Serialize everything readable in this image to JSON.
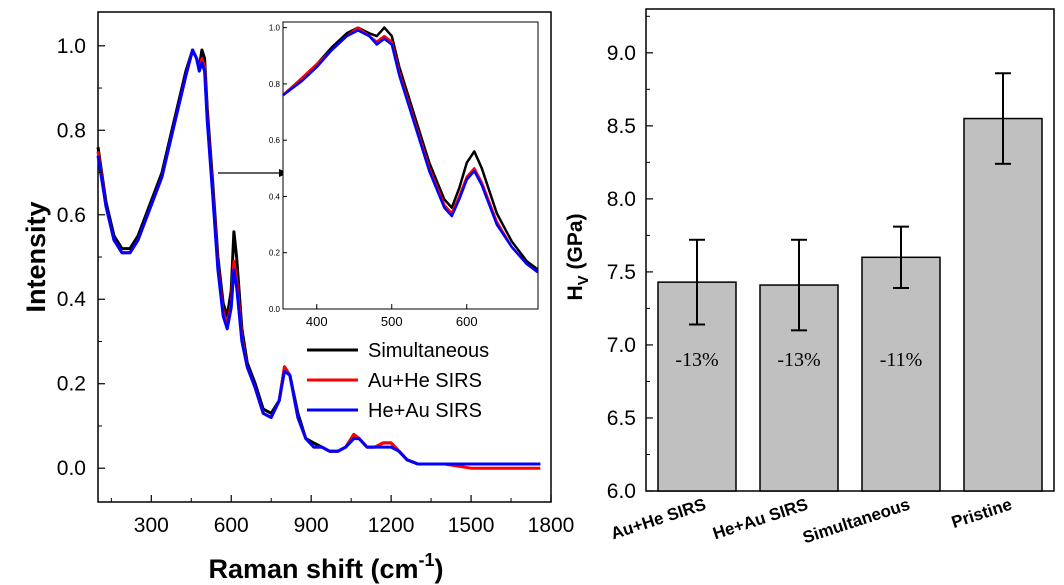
{
  "chart_data": [
    {
      "type": "line",
      "title": "",
      "xlabel": "Raman shift (cm",
      "xlabel_sup": "-1",
      "xlabel_end": ")",
      "ylabel": "Intensity",
      "xlim": [
        100,
        1800
      ],
      "ylim": [
        -0.08,
        1.08
      ],
      "x_ticks": [
        "300",
        "600",
        "900",
        "1200",
        "1500",
        "1800"
      ],
      "y_ticks": [
        "0.0",
        "0.2",
        "0.4",
        "0.6",
        "0.8",
        "1.0"
      ],
      "legend_position": "lower-right",
      "series": [
        {
          "name": "Simultaneous",
          "color": "#000000",
          "x": [
            100,
            130,
            160,
            190,
            220,
            250,
            280,
            310,
            340,
            370,
            400,
            430,
            455,
            470,
            480,
            490,
            500,
            510,
            530,
            550,
            570,
            585,
            600,
            610,
            620,
            640,
            660,
            690,
            720,
            750,
            780,
            800,
            820,
            850,
            880,
            910,
            940,
            970,
            1000,
            1030,
            1060,
            1080,
            1110,
            1140,
            1170,
            1200,
            1230,
            1260,
            1300,
            1400,
            1500,
            1600,
            1700,
            1760
          ],
          "y": [
            0.76,
            0.63,
            0.55,
            0.52,
            0.52,
            0.55,
            0.6,
            0.65,
            0.7,
            0.78,
            0.86,
            0.94,
            0.99,
            0.97,
            0.95,
            0.99,
            0.97,
            0.85,
            0.68,
            0.5,
            0.39,
            0.36,
            0.42,
            0.56,
            0.5,
            0.33,
            0.25,
            0.2,
            0.14,
            0.13,
            0.16,
            0.24,
            0.22,
            0.13,
            0.07,
            0.06,
            0.05,
            0.04,
            0.04,
            0.05,
            0.08,
            0.07,
            0.05,
            0.05,
            0.06,
            0.06,
            0.04,
            0.02,
            0.01,
            0.01,
            0.01,
            0.01,
            0.01,
            0.01
          ]
        },
        {
          "name": "Au+He SIRS",
          "color": "#ff0000",
          "x": [
            100,
            130,
            160,
            190,
            220,
            250,
            280,
            310,
            340,
            370,
            400,
            430,
            455,
            470,
            480,
            490,
            500,
            510,
            530,
            550,
            570,
            585,
            600,
            610,
            620,
            640,
            660,
            690,
            720,
            750,
            780,
            800,
            820,
            850,
            880,
            910,
            940,
            970,
            1000,
            1030,
            1060,
            1080,
            1110,
            1140,
            1170,
            1200,
            1230,
            1260,
            1300,
            1400,
            1500,
            1600,
            1700,
            1760
          ],
          "y": [
            0.75,
            0.62,
            0.54,
            0.51,
            0.51,
            0.54,
            0.59,
            0.64,
            0.69,
            0.77,
            0.85,
            0.93,
            0.99,
            0.97,
            0.94,
            0.97,
            0.95,
            0.83,
            0.66,
            0.48,
            0.37,
            0.34,
            0.39,
            0.49,
            0.45,
            0.31,
            0.24,
            0.19,
            0.13,
            0.12,
            0.16,
            0.24,
            0.22,
            0.12,
            0.07,
            0.05,
            0.05,
            0.04,
            0.04,
            0.05,
            0.08,
            0.07,
            0.05,
            0.05,
            0.06,
            0.06,
            0.04,
            0.02,
            0.01,
            0.01,
            0.0,
            0.0,
            0.0,
            0.0
          ]
        },
        {
          "name": "He+Au SIRS",
          "color": "#0000ff",
          "x": [
            100,
            130,
            160,
            190,
            220,
            250,
            280,
            310,
            340,
            370,
            400,
            430,
            455,
            470,
            480,
            490,
            500,
            510,
            530,
            550,
            570,
            585,
            600,
            610,
            620,
            640,
            660,
            690,
            720,
            750,
            780,
            800,
            820,
            850,
            880,
            910,
            940,
            970,
            1000,
            1030,
            1060,
            1080,
            1110,
            1140,
            1170,
            1200,
            1230,
            1260,
            1300,
            1400,
            1500,
            1600,
            1700,
            1760
          ],
          "y": [
            0.74,
            0.62,
            0.54,
            0.51,
            0.51,
            0.54,
            0.59,
            0.64,
            0.69,
            0.77,
            0.85,
            0.93,
            0.99,
            0.97,
            0.94,
            0.96,
            0.94,
            0.82,
            0.65,
            0.47,
            0.36,
            0.33,
            0.38,
            0.47,
            0.43,
            0.3,
            0.24,
            0.19,
            0.13,
            0.12,
            0.16,
            0.23,
            0.22,
            0.12,
            0.07,
            0.05,
            0.05,
            0.04,
            0.04,
            0.05,
            0.07,
            0.07,
            0.05,
            0.05,
            0.05,
            0.05,
            0.04,
            0.02,
            0.01,
            0.01,
            0.01,
            0.01,
            0.01,
            0.01
          ]
        }
      ]
    },
    {
      "type": "line",
      "title": "",
      "role": "inset",
      "xlim": [
        355,
        695
      ],
      "ylim": [
        0.0,
        1.02
      ],
      "x_ticks": [
        "400",
        "500",
        "600"
      ],
      "y_ticks": [
        "0.0",
        "0.2",
        "0.4",
        "0.6",
        "0.8",
        "1.0"
      ],
      "series": [
        {
          "name": "Simultaneous",
          "color": "#000000",
          "x": [
            355,
            380,
            400,
            420,
            440,
            455,
            470,
            480,
            490,
            500,
            510,
            530,
            550,
            570,
            580,
            590,
            600,
            610,
            620,
            640,
            660,
            680,
            695
          ],
          "y": [
            0.76,
            0.82,
            0.87,
            0.93,
            0.98,
            1.0,
            0.98,
            0.97,
            1.0,
            0.97,
            0.86,
            0.69,
            0.52,
            0.39,
            0.36,
            0.43,
            0.52,
            0.56,
            0.5,
            0.34,
            0.24,
            0.17,
            0.14
          ]
        },
        {
          "name": "Au+He SIRS",
          "color": "#ff0000",
          "x": [
            355,
            380,
            400,
            420,
            440,
            455,
            470,
            480,
            490,
            500,
            510,
            530,
            550,
            570,
            580,
            590,
            600,
            610,
            620,
            640,
            660,
            680,
            695
          ],
          "y": [
            0.76,
            0.82,
            0.87,
            0.92,
            0.97,
            1.0,
            0.97,
            0.95,
            0.97,
            0.95,
            0.84,
            0.67,
            0.5,
            0.37,
            0.34,
            0.4,
            0.47,
            0.5,
            0.45,
            0.31,
            0.22,
            0.16,
            0.13
          ]
        },
        {
          "name": "He+Au SIRS",
          "color": "#0000ff",
          "x": [
            355,
            380,
            400,
            420,
            440,
            455,
            470,
            480,
            490,
            500,
            510,
            530,
            550,
            570,
            580,
            590,
            600,
            610,
            620,
            640,
            660,
            680,
            695
          ],
          "y": [
            0.76,
            0.81,
            0.86,
            0.92,
            0.97,
            0.99,
            0.97,
            0.94,
            0.96,
            0.94,
            0.83,
            0.66,
            0.49,
            0.36,
            0.33,
            0.39,
            0.46,
            0.49,
            0.44,
            0.3,
            0.22,
            0.16,
            0.13
          ]
        }
      ]
    },
    {
      "type": "bar",
      "title": "",
      "ylabel_main": "H",
      "ylabel_sub": "V",
      "ylabel_end": " (GPa)",
      "xlabel": "",
      "ylim": [
        6.0,
        9.3
      ],
      "y_ticks": [
        "6.0",
        "6.5",
        "7.0",
        "7.5",
        "8.0",
        "8.5",
        "9.0"
      ],
      "categories": [
        "Au+He SIRS",
        "He+Au SIRS",
        "Simultaneous",
        "Pristine"
      ],
      "values": [
        7.43,
        7.41,
        7.6,
        8.55
      ],
      "errors": [
        0.29,
        0.31,
        0.21,
        0.31
      ],
      "bar_labels": [
        "-13%",
        "-13%",
        "-11%",
        ""
      ],
      "bar_color": "#c0c0c0"
    }
  ]
}
